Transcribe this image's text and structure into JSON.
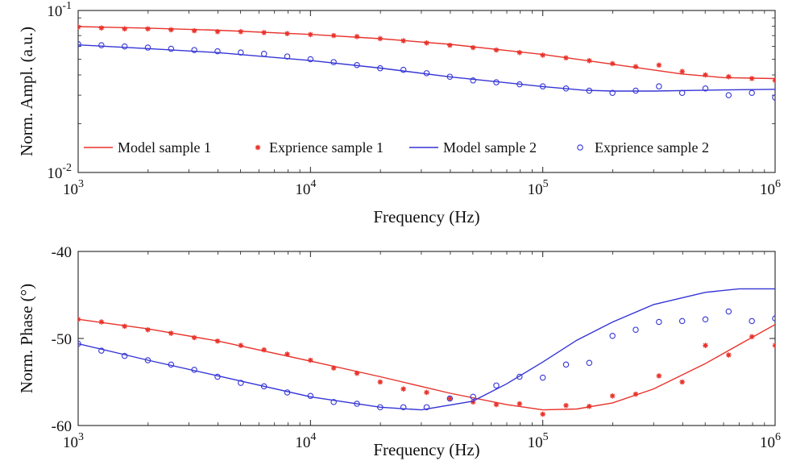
{
  "chart_data": [
    {
      "type": "line",
      "xlabel": "Frequency (Hz)",
      "ylabel": "Norm. Ampl. (a.u.)",
      "xscale": "log",
      "yscale": "log",
      "xlim": [
        1000,
        1000000
      ],
      "ylim": [
        0.01,
        0.1
      ],
      "xticks": [
        {
          "base": "10",
          "exp": "3"
        },
        {
          "base": "10",
          "exp": "4"
        },
        {
          "base": "10",
          "exp": "5"
        },
        {
          "base": "10",
          "exp": "6"
        }
      ],
      "yticks": [
        {
          "base": "10",
          "exp": "-2"
        },
        {
          "base": "10",
          "exp": "-1"
        }
      ],
      "grid": false,
      "legend_placement": "bottom",
      "series": [
        {
          "name": "Model sample 1",
          "style": "line",
          "color": "#e8322a",
          "x": [
            1000,
            2000,
            4000,
            10000,
            20000,
            40000,
            100000,
            200000,
            400000,
            600000,
            1000000
          ],
          "y": [
            0.0795,
            0.0778,
            0.0755,
            0.0712,
            0.067,
            0.0618,
            0.0535,
            0.0466,
            0.0405,
            0.0385,
            0.038
          ]
        },
        {
          "name": "Exprience sample 1",
          "style": "marker",
          "marker": "star",
          "color": "#e8322a",
          "x": [
            1000,
            1259,
            1585,
            1995,
            2512,
            3162,
            3981,
            5012,
            6310,
            7943,
            10000,
            12589,
            15849,
            19953,
            25119,
            31623,
            39811,
            50119,
            63096,
            79433,
            100000,
            125893,
            158489,
            199526,
            251189,
            316228,
            398107,
            501187,
            630957,
            794328,
            1000000
          ],
          "y": [
            0.079,
            0.078,
            0.077,
            0.077,
            0.076,
            0.075,
            0.074,
            0.074,
            0.073,
            0.072,
            0.071,
            0.07,
            0.069,
            0.067,
            0.065,
            0.063,
            0.061,
            0.059,
            0.057,
            0.055,
            0.053,
            0.051,
            0.049,
            0.047,
            0.045,
            0.046,
            0.042,
            0.04,
            0.039,
            0.038,
            0.037
          ]
        },
        {
          "name": "Model sample 2",
          "style": "line",
          "color": "#3535d6",
          "x": [
            1000,
            2000,
            4000,
            10000,
            20000,
            40000,
            100000,
            150000,
            200000,
            300000,
            500000,
            1000000
          ],
          "y": [
            0.0613,
            0.0582,
            0.0549,
            0.0491,
            0.0441,
            0.0389,
            0.0339,
            0.0322,
            0.0318,
            0.0318,
            0.0322,
            0.0326
          ]
        },
        {
          "name": "Exprience sample 2",
          "style": "marker",
          "marker": "circle",
          "color": "#3535d6",
          "x": [
            1000,
            1259,
            1585,
            1995,
            2512,
            3162,
            3981,
            5012,
            6310,
            7943,
            10000,
            12589,
            15849,
            19953,
            25119,
            31623,
            39811,
            50119,
            63096,
            79433,
            100000,
            125893,
            158489,
            199526,
            251189,
            316228,
            398107,
            501187,
            630957,
            794328,
            1000000
          ],
          "y": [
            0.062,
            0.061,
            0.06,
            0.059,
            0.058,
            0.057,
            0.056,
            0.055,
            0.054,
            0.052,
            0.05,
            0.048,
            0.046,
            0.044,
            0.043,
            0.041,
            0.039,
            0.037,
            0.036,
            0.035,
            0.034,
            0.033,
            0.032,
            0.031,
            0.032,
            0.034,
            0.031,
            0.033,
            0.03,
            0.031,
            0.029
          ]
        }
      ]
    },
    {
      "type": "line",
      "xlabel": "Frequency (Hz)",
      "ylabel": "Norm. Phase (°)",
      "xscale": "log",
      "yscale": "linear",
      "xlim": [
        1000,
        1000000
      ],
      "ylim": [
        -60,
        -40
      ],
      "xticks": [
        {
          "base": "10",
          "exp": "3"
        },
        {
          "base": "10",
          "exp": "4"
        },
        {
          "base": "10",
          "exp": "5"
        },
        {
          "base": "10",
          "exp": "6"
        }
      ],
      "yticks": [
        "-60",
        "-50",
        "-40"
      ],
      "ytick_values": [
        -60,
        -50,
        -40
      ],
      "grid": false,
      "series": [
        {
          "name": "Model sample 1",
          "style": "line",
          "color": "#e8322a",
          "x": [
            1000,
            2000,
            4000,
            10000,
            20000,
            40000,
            70000,
            100000,
            140000,
            200000,
            300000,
            500000,
            700000,
            1000000
          ],
          "y": [
            -47.8,
            -48.9,
            -50.3,
            -52.6,
            -54.4,
            -56.3,
            -57.6,
            -58.2,
            -58.1,
            -57.4,
            -55.8,
            -52.9,
            -50.7,
            -48.4
          ]
        },
        {
          "name": "Exprience sample 1",
          "style": "marker",
          "marker": "star",
          "color": "#e8322a",
          "x": [
            1000,
            1259,
            1585,
            1995,
            2512,
            3162,
            3981,
            5012,
            6310,
            7943,
            10000,
            12589,
            15849,
            19953,
            25119,
            31623,
            39811,
            50119,
            63096,
            79433,
            100000,
            125893,
            158489,
            199526,
            251189,
            316228,
            398107,
            501187,
            630957,
            794328,
            1000000
          ],
          "y": [
            -47.8,
            -48.1,
            -48.6,
            -49,
            -49.4,
            -49.9,
            -50.3,
            -50.8,
            -51.3,
            -51.8,
            -52.5,
            -53.4,
            -54,
            -55,
            -55.8,
            -56.2,
            -56.9,
            -57.3,
            -57.6,
            -57.5,
            -58.7,
            -57.7,
            -57.8,
            -56.6,
            -56.4,
            -54.3,
            -55,
            -50.8,
            -51.9,
            -49.8,
            -50.8
          ]
        },
        {
          "name": "Model sample 2",
          "style": "line",
          "color": "#3535d6",
          "x": [
            1000,
            2000,
            4000,
            10000,
            20000,
            30000,
            50000,
            70000,
            100000,
            140000,
            200000,
            300000,
            500000,
            700000,
            1000000
          ],
          "y": [
            -50.6,
            -52.5,
            -54.3,
            -56.7,
            -57.9,
            -58.2,
            -57.2,
            -55.2,
            -52.7,
            -50.2,
            -48.1,
            -46.1,
            -44.7,
            -44.3,
            -44.3
          ]
        },
        {
          "name": "Exprience sample 2",
          "style": "marker",
          "marker": "circle",
          "color": "#3535d6",
          "x": [
            1000,
            1259,
            1585,
            1995,
            2512,
            3162,
            3981,
            5012,
            6310,
            7943,
            10000,
            12589,
            15849,
            19953,
            25119,
            31623,
            39811,
            50119,
            63096,
            79433,
            100000,
            125893,
            158489,
            199526,
            251189,
            316228,
            398107,
            501187,
            630957,
            794328,
            1000000
          ],
          "y": [
            -50.6,
            -51.4,
            -52,
            -52.5,
            -53,
            -53.6,
            -54.4,
            -55.1,
            -55.5,
            -56.2,
            -56.6,
            -57.3,
            -57.5,
            -57.9,
            -57.9,
            -57.9,
            -56.9,
            -56.7,
            -55.4,
            -54.4,
            -54.5,
            -53,
            -52.8,
            -49.7,
            -49,
            -48.1,
            -48,
            -47.8,
            -46.9,
            -48,
            -47.7
          ]
        }
      ]
    }
  ]
}
